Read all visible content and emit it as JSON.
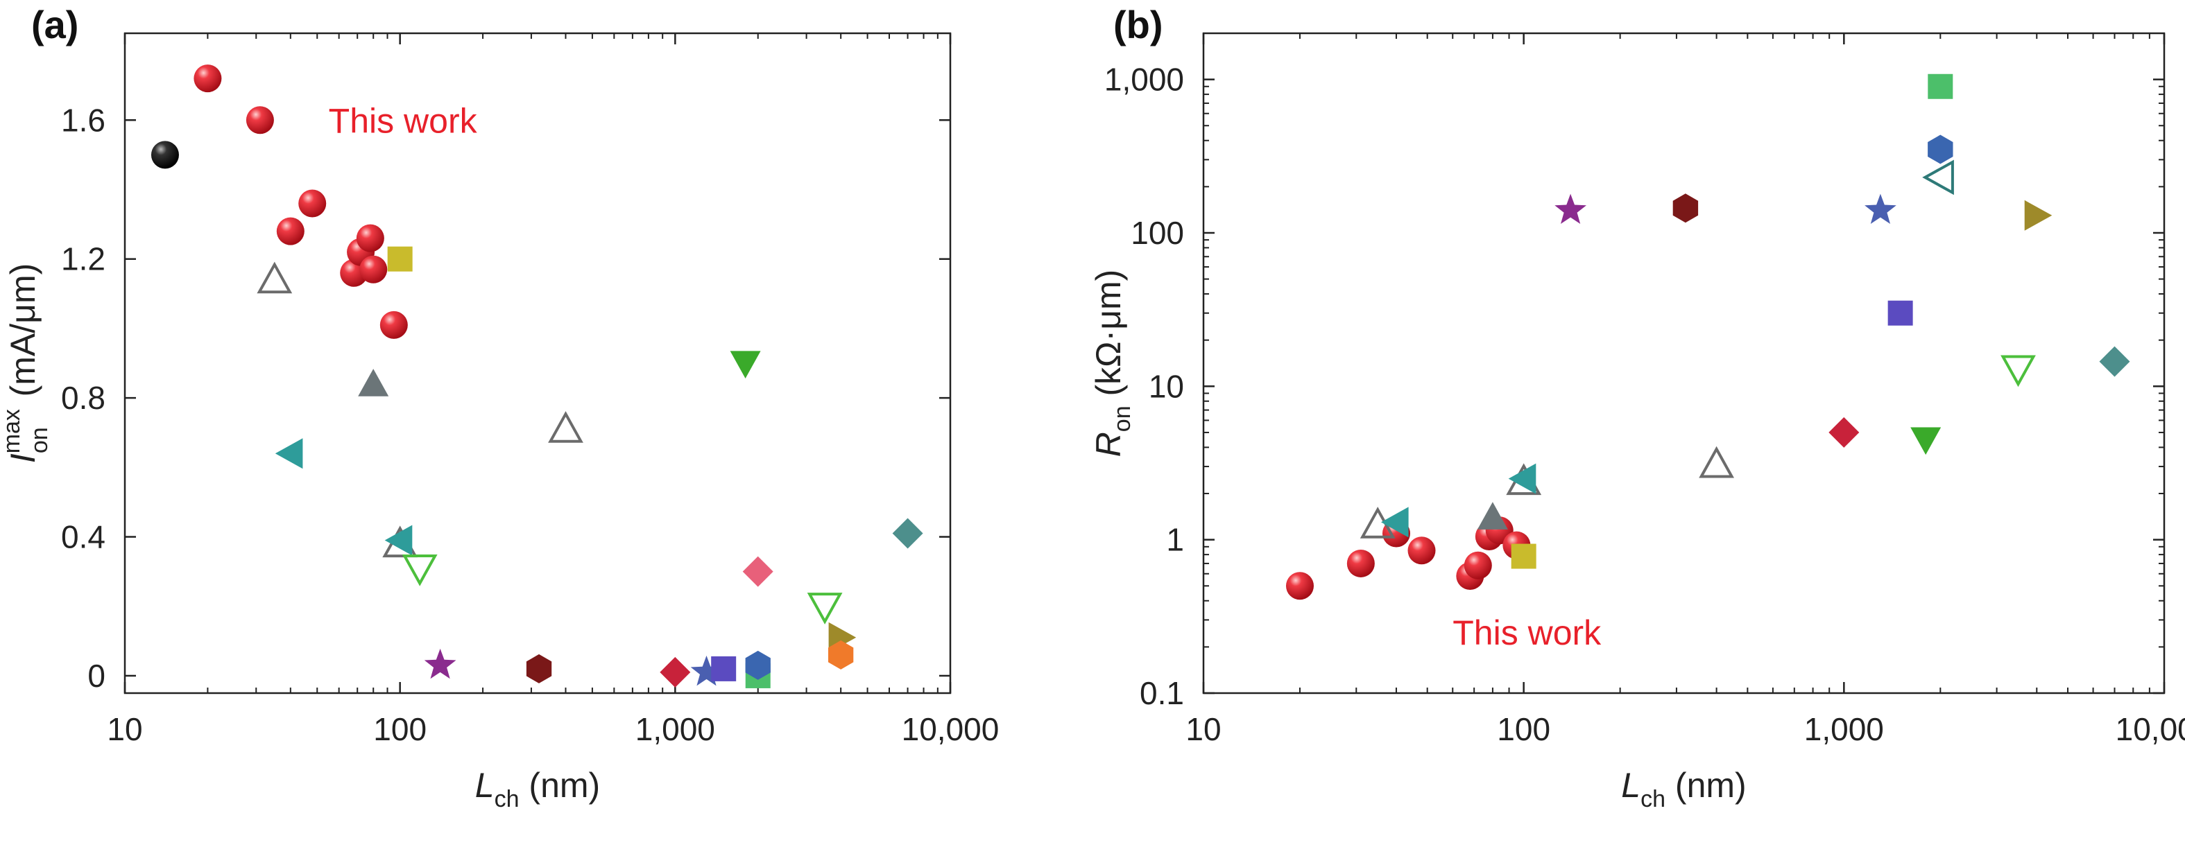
{
  "chart_data": [
    {
      "panel_label": "(a)",
      "type": "scatter",
      "x_scale": "log",
      "xlim": [
        10,
        10000
      ],
      "ylim": [
        -0.05,
        1.85
      ],
      "xticks": [
        10,
        100,
        1000,
        10000
      ],
      "xtick_labels": [
        "10",
        "100",
        "1,000",
        "10,000"
      ],
      "yticks": [
        0,
        0.4,
        0.8,
        1.2,
        1.6
      ],
      "ytick_labels": [
        "0",
        "0.4",
        "0.8",
        "1.2",
        "1.6"
      ],
      "xlabel": {
        "main": "L",
        "sub": "ch",
        "unit": " (nm)"
      },
      "ylabel": {
        "main": "I",
        "sup": "max",
        "sub": "on",
        "unit": " (mA/μm)"
      },
      "annotation": {
        "text": "This work",
        "x": 55,
        "y": 1.6,
        "color": "#e8202a"
      },
      "points": [
        {
          "x": 14,
          "y": 1.5,
          "shape": "sphere",
          "color": "#111111"
        },
        {
          "x": 20,
          "y": 1.72,
          "shape": "sphere",
          "color": "#e01f2b"
        },
        {
          "x": 31,
          "y": 1.6,
          "shape": "sphere",
          "color": "#e01f2b"
        },
        {
          "x": 40,
          "y": 1.28,
          "shape": "sphere",
          "color": "#e01f2b"
        },
        {
          "x": 48,
          "y": 1.36,
          "shape": "sphere",
          "color": "#e01f2b"
        },
        {
          "x": 68,
          "y": 1.16,
          "shape": "sphere",
          "color": "#e01f2b"
        },
        {
          "x": 72,
          "y": 1.22,
          "shape": "sphere",
          "color": "#e01f2b"
        },
        {
          "x": 78,
          "y": 1.26,
          "shape": "sphere",
          "color": "#e01f2b"
        },
        {
          "x": 80,
          "y": 1.17,
          "shape": "sphere",
          "color": "#e01f2b"
        },
        {
          "x": 95,
          "y": 1.01,
          "shape": "sphere",
          "color": "#e01f2b"
        },
        {
          "x": 100,
          "y": 1.2,
          "shape": "square",
          "color": "#c9bb2c"
        },
        {
          "x": 35,
          "y": 1.14,
          "shape": "triangle-up-open",
          "color": "#6b6b6b"
        },
        {
          "x": 80,
          "y": 0.84,
          "shape": "triangle-up",
          "color": "#6b7578"
        },
        {
          "x": 400,
          "y": 0.71,
          "shape": "triangle-up-open",
          "color": "#6b6b6b"
        },
        {
          "x": 40,
          "y": 0.64,
          "shape": "triangle-left",
          "color": "#2e9c9a"
        },
        {
          "x": 100,
          "y": 0.38,
          "shape": "triangle-up-open",
          "color": "#6b6b6b"
        },
        {
          "x": 100,
          "y": 0.39,
          "shape": "triangle-left",
          "color": "#2e9c9a"
        },
        {
          "x": 118,
          "y": 0.31,
          "shape": "triangle-down-open",
          "color": "#4cbf3c"
        },
        {
          "x": 140,
          "y": 0.03,
          "shape": "star",
          "color": "#8a2b8e"
        },
        {
          "x": 320,
          "y": 0.02,
          "shape": "hexagon",
          "color": "#7a1818"
        },
        {
          "x": 1000,
          "y": 0.01,
          "shape": "diamond",
          "color": "#c8223a"
        },
        {
          "x": 1300,
          "y": 0.01,
          "shape": "star",
          "color": "#4a5fb0"
        },
        {
          "x": 1500,
          "y": 0.02,
          "shape": "square",
          "color": "#5b4bc0"
        },
        {
          "x": 2000,
          "y": 0.0,
          "shape": "square",
          "color": "#4cbf6a"
        },
        {
          "x": 2000,
          "y": 0.03,
          "shape": "hexagon",
          "color": "#3a66b0"
        },
        {
          "x": 1800,
          "y": 0.9,
          "shape": "triangle-down",
          "color": "#3aaa2a"
        },
        {
          "x": 2000,
          "y": 0.3,
          "shape": "diamond",
          "color": "#e8607a"
        },
        {
          "x": 3500,
          "y": 0.2,
          "shape": "triangle-down-open",
          "color": "#4cbf3c"
        },
        {
          "x": 4000,
          "y": 0.11,
          "shape": "triangle-right",
          "color": "#9e8a2a"
        },
        {
          "x": 4000,
          "y": 0.06,
          "shape": "hexagon",
          "color": "#f07a2a"
        },
        {
          "x": 7000,
          "y": 0.41,
          "shape": "diamond",
          "color": "#4d8f8c"
        }
      ]
    },
    {
      "panel_label": "(b)",
      "type": "scatter",
      "x_scale": "log",
      "y_scale": "log",
      "xlim": [
        10,
        10000
      ],
      "ylim": [
        0.1,
        2000
      ],
      "xticks": [
        10,
        100,
        1000,
        10000
      ],
      "xtick_labels": [
        "10",
        "100",
        "1,000",
        "10,000"
      ],
      "yticks": [
        0.1,
        1,
        10,
        100,
        1000
      ],
      "ytick_labels": [
        "0.1",
        "1",
        "10",
        "100",
        "1,000"
      ],
      "xlabel": {
        "main": "L",
        "sub": "ch",
        "unit": " (nm)"
      },
      "ylabel": {
        "main": "R",
        "sub": "on",
        "unit": " (kΩ·μm)"
      },
      "annotation": {
        "text": "This work",
        "x": 60,
        "y": 0.25,
        "color": "#e8202a"
      },
      "points": [
        {
          "x": 20,
          "y": 0.5,
          "shape": "sphere",
          "color": "#e01f2b"
        },
        {
          "x": 31,
          "y": 0.7,
          "shape": "sphere",
          "color": "#e01f2b"
        },
        {
          "x": 40,
          "y": 1.1,
          "shape": "sphere",
          "color": "#e01f2b"
        },
        {
          "x": 48,
          "y": 0.85,
          "shape": "sphere",
          "color": "#e01f2b"
        },
        {
          "x": 68,
          "y": 0.58,
          "shape": "sphere",
          "color": "#e01f2b"
        },
        {
          "x": 72,
          "y": 0.68,
          "shape": "sphere",
          "color": "#e01f2b"
        },
        {
          "x": 78,
          "y": 1.05,
          "shape": "sphere",
          "color": "#e01f2b"
        },
        {
          "x": 84,
          "y": 1.15,
          "shape": "sphere",
          "color": "#e01f2b"
        },
        {
          "x": 95,
          "y": 0.92,
          "shape": "sphere",
          "color": "#e01f2b"
        },
        {
          "x": 100,
          "y": 0.78,
          "shape": "square",
          "color": "#c9bb2c"
        },
        {
          "x": 35,
          "y": 1.25,
          "shape": "triangle-up-open",
          "color": "#6b6b6b"
        },
        {
          "x": 40,
          "y": 1.3,
          "shape": "triangle-left",
          "color": "#2e9c9a"
        },
        {
          "x": 80,
          "y": 1.4,
          "shape": "triangle-up",
          "color": "#6b7578"
        },
        {
          "x": 100,
          "y": 2.4,
          "shape": "triangle-up-open",
          "color": "#6b6b6b"
        },
        {
          "x": 100,
          "y": 2.5,
          "shape": "triangle-left",
          "color": "#2e9c9a"
        },
        {
          "x": 140,
          "y": 140,
          "shape": "star",
          "color": "#8a2b8e"
        },
        {
          "x": 320,
          "y": 145,
          "shape": "hexagon",
          "color": "#7a1818"
        },
        {
          "x": 400,
          "y": 3.1,
          "shape": "triangle-up-open",
          "color": "#6b6b6b"
        },
        {
          "x": 1000,
          "y": 5,
          "shape": "diamond",
          "color": "#c8223a"
        },
        {
          "x": 1300,
          "y": 140,
          "shape": "star",
          "color": "#4a5fb0"
        },
        {
          "x": 1500,
          "y": 30,
          "shape": "square",
          "color": "#5b4bc0"
        },
        {
          "x": 1800,
          "y": 4.5,
          "shape": "triangle-down",
          "color": "#3aaa2a"
        },
        {
          "x": 2000,
          "y": 900,
          "shape": "square",
          "color": "#4cbf6a"
        },
        {
          "x": 2000,
          "y": 350,
          "shape": "hexagon",
          "color": "#3a66b0"
        },
        {
          "x": 2000,
          "y": 230,
          "shape": "triangle-left-open",
          "color": "#2e7a78"
        },
        {
          "x": 3500,
          "y": 13,
          "shape": "triangle-down-open",
          "color": "#4cbf3c"
        },
        {
          "x": 4000,
          "y": 130,
          "shape": "triangle-right",
          "color": "#9e8a2a"
        },
        {
          "x": 7000,
          "y": 14.5,
          "shape": "diamond",
          "color": "#4d8f8c"
        }
      ]
    }
  ]
}
